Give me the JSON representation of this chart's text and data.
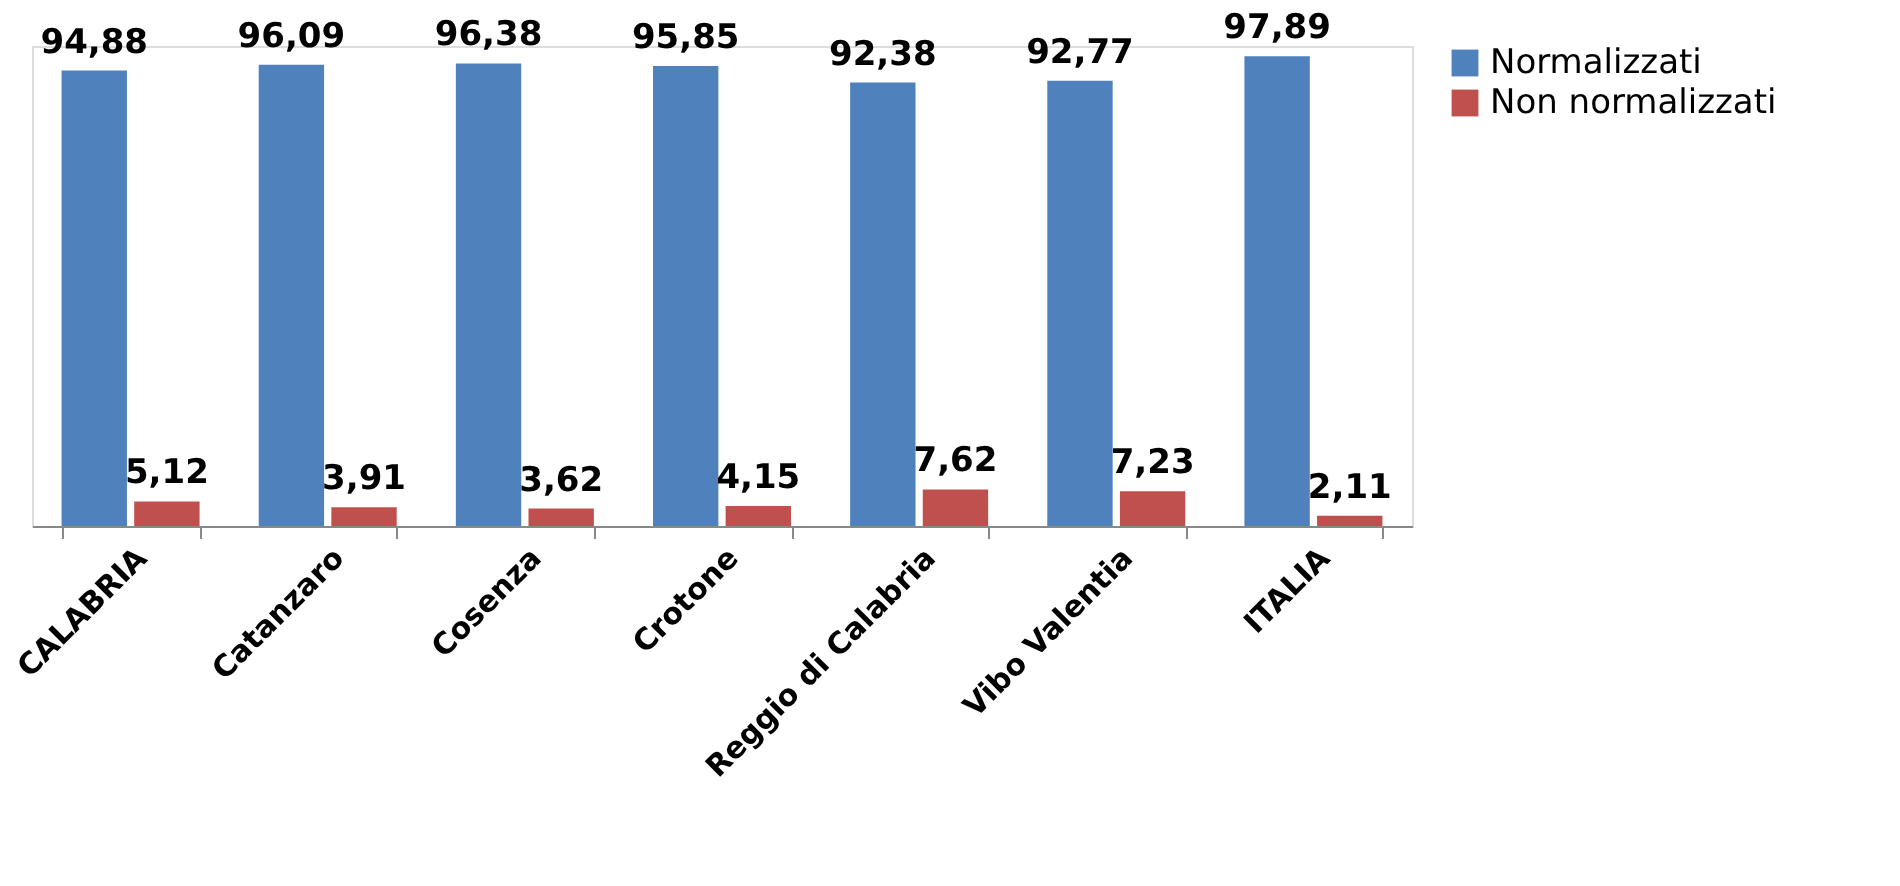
{
  "chart_data": {
    "type": "bar",
    "categories": [
      "CALABRIA",
      "Catanzaro",
      "Cosenza",
      "Crotone",
      "Reggio di Calabria",
      "Vibo Valentia",
      "ITALIA"
    ],
    "series": [
      {
        "name": "Normalizzati",
        "color": "#4f81bd",
        "values": [
          94.88,
          96.09,
          96.38,
          95.85,
          92.38,
          92.77,
          97.89
        ],
        "value_labels": [
          "94,88",
          "96,09",
          "96,38",
          "95,85",
          "92,38",
          "92,77",
          "97,89"
        ]
      },
      {
        "name": "Non normalizzati",
        "color": "#c0504d",
        "values": [
          5.12,
          3.91,
          3.62,
          4.15,
          7.62,
          7.23,
          2.11
        ],
        "value_labels": [
          "5,12",
          "3,91",
          "3,62",
          "4,15",
          "7,62",
          "7,23",
          "2,11"
        ]
      }
    ],
    "legend": "right",
    "grid": false
  }
}
